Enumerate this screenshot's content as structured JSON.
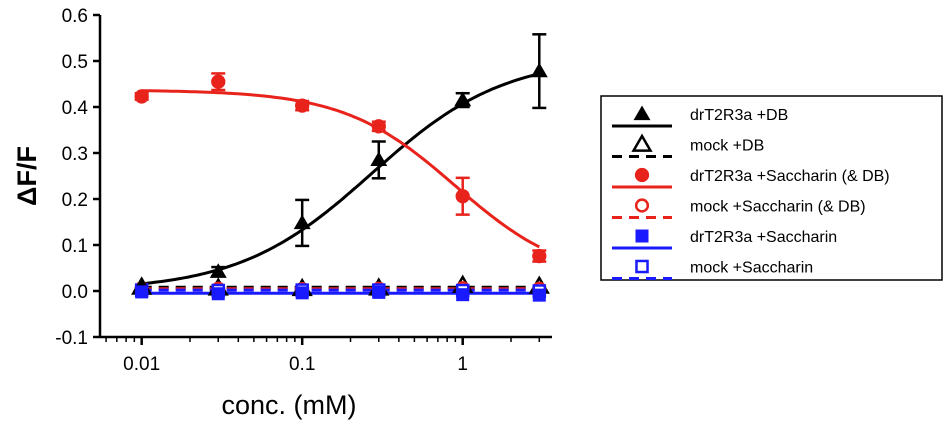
{
  "chart_data": {
    "type": "scatter",
    "xlabel": "conc. (mM)",
    "ylabel": "ΔF/F",
    "xscale": "log",
    "xlim": [
      0.0055,
      3.6
    ],
    "ylim": [
      -0.1,
      0.6
    ],
    "yticks": [
      -0.1,
      0.0,
      0.1,
      0.2,
      0.3,
      0.4,
      0.5,
      0.6
    ],
    "ytick_labels": [
      "-0.1",
      "0.0",
      "0.1",
      "0.2",
      "0.3",
      "0.4",
      "0.5",
      "0.6"
    ],
    "xticks": [
      0.01,
      0.1,
      1
    ],
    "xtick_labels": [
      "0.01",
      "0.1",
      "1"
    ],
    "legend_position": "right",
    "series": [
      {
        "name": "drT2R3a +DB",
        "color": "#000000",
        "marker": "triangle",
        "filled": true,
        "line": "solid",
        "x": [
          0.01,
          0.03,
          0.1,
          0.3,
          1,
          3
        ],
        "y": [
          0.013,
          0.042,
          0.148,
          0.285,
          0.415,
          0.478
        ],
        "err": [
          0.004,
          0.01,
          0.05,
          0.04,
          0.015,
          0.08
        ],
        "fit": {
          "kind": "hill-up",
          "bottom": 0.0,
          "top": 0.51,
          "ec50": 0.27,
          "n": 1.05
        }
      },
      {
        "name": "mock +DB",
        "color": "#000000",
        "marker": "triangle",
        "filled": false,
        "line": "dashed",
        "x": [
          0.01,
          0.03,
          0.1,
          0.3,
          1,
          3
        ],
        "y": [
          0.008,
          0.006,
          0.005,
          0.006,
          0.012,
          0.01
        ],
        "err": [
          0.003,
          0.003,
          0.003,
          0.003,
          0.004,
          0.004
        ],
        "fit": {
          "kind": "flat",
          "value": 0.008
        }
      },
      {
        "name": "drT2R3a +Saccharin (& DB)",
        "color": "#e8231c",
        "marker": "circle",
        "filled": true,
        "line": "solid",
        "x": [
          0.01,
          0.03,
          0.1,
          0.3,
          1,
          3
        ],
        "y": [
          0.423,
          0.455,
          0.403,
          0.358,
          0.206,
          0.076
        ],
        "err": [
          0.007,
          0.018,
          0.01,
          0.01,
          0.04,
          0.012
        ],
        "fit": {
          "kind": "hill-down",
          "bottom": 0.02,
          "top": 0.437,
          "ec50": 0.9,
          "n": 1.25
        }
      },
      {
        "name": "mock +Saccharin (& DB)",
        "color": "#e8231c",
        "marker": "circle",
        "filled": false,
        "line": "dashed",
        "x": [
          0.01,
          0.03,
          0.1,
          0.3,
          1,
          3
        ],
        "y": [
          0.006,
          0.005,
          0.004,
          0.005,
          0.006,
          0.005
        ],
        "err": [
          0.003,
          0.003,
          0.003,
          0.003,
          0.003,
          0.003
        ],
        "fit": {
          "kind": "flat",
          "value": 0.005
        }
      },
      {
        "name": "drT2R3a +Saccharin",
        "color": "#1a1aff",
        "marker": "square",
        "filled": true,
        "line": "solid",
        "x": [
          0.01,
          0.03,
          0.1,
          0.3,
          1,
          3
        ],
        "y": [
          -0.002,
          -0.006,
          -0.004,
          -0.003,
          -0.008,
          -0.009
        ],
        "err": [
          0.003,
          0.003,
          0.003,
          0.003,
          0.003,
          0.003
        ],
        "fit": {
          "kind": "flat",
          "value": -0.005
        }
      },
      {
        "name": "mock +Saccharin",
        "color": "#1a1aff",
        "marker": "square",
        "filled": false,
        "line": "dashed",
        "x": [
          0.01,
          0.03,
          0.1,
          0.3,
          1,
          3
        ],
        "y": [
          0.002,
          0.001,
          0.002,
          0.002,
          0.001,
          0.0
        ],
        "err": [
          0.002,
          0.002,
          0.002,
          0.002,
          0.002,
          0.002
        ],
        "fit": {
          "kind": "flat",
          "value": 0.002
        }
      }
    ]
  }
}
